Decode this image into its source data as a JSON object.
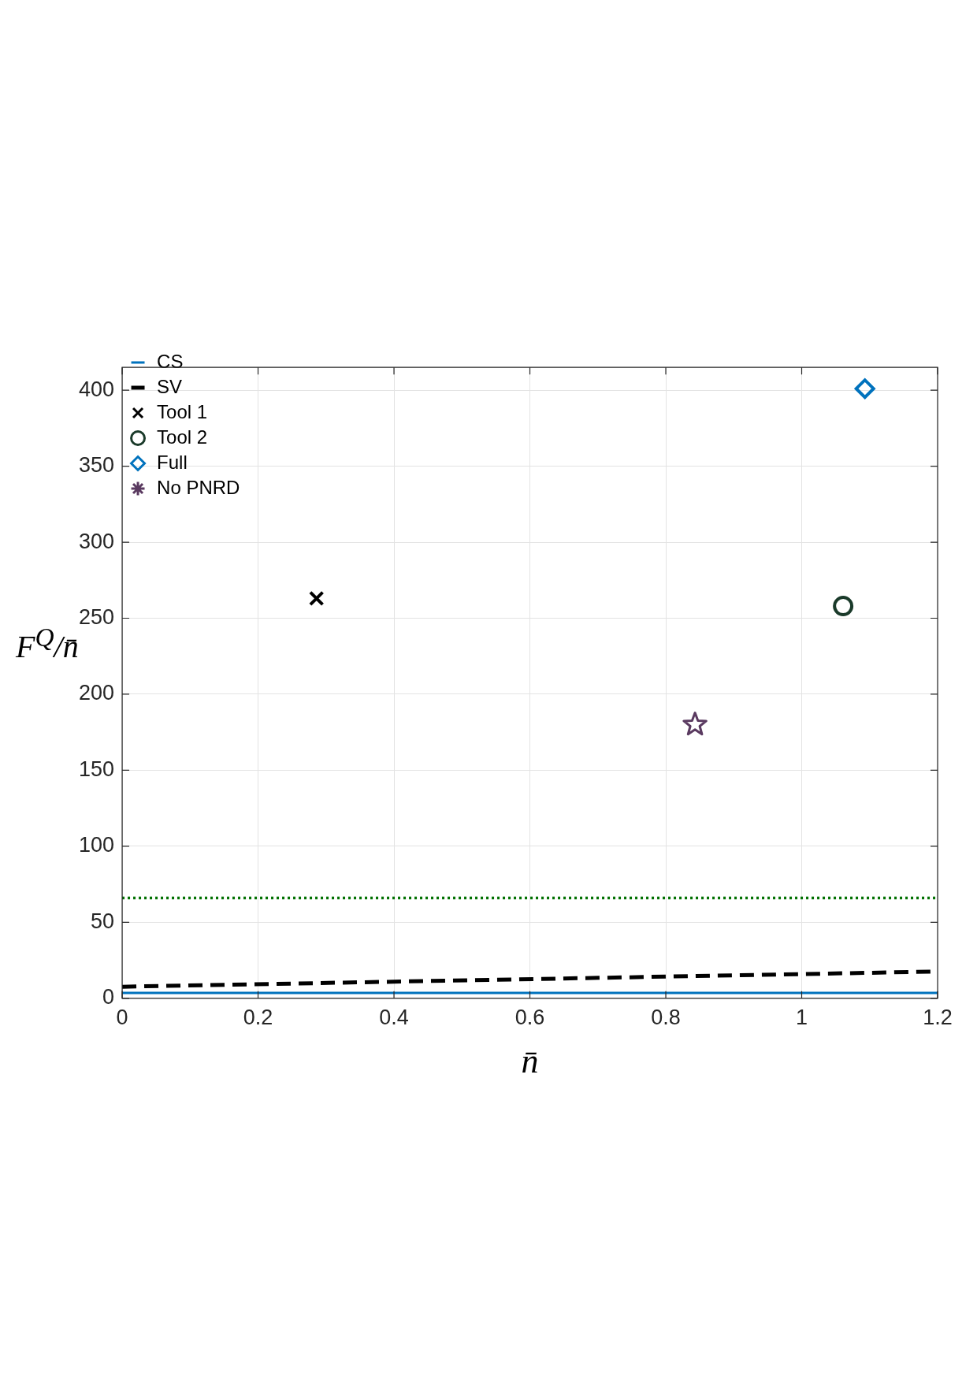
{
  "chart_data": {
    "type": "scatter",
    "xlabel": "n̄",
    "ylabel": "F$^{Q}$/n̄",
    "xlim": [
      0,
      1.2
    ],
    "xticks": [
      0,
      0.2,
      0.4,
      0.6,
      0.8,
      1,
      1.2
    ],
    "ylim": [
      0,
      415
    ],
    "yticks": [
      0,
      50,
      100,
      150,
      200,
      250,
      300,
      350,
      400
    ],
    "grid": true,
    "legend": "top left",
    "series": [
      {
        "name": "CS",
        "type": "line",
        "color": "#0072bd",
        "line_style": "solid",
        "marker": "none",
        "x": [
          0,
          1.2
        ],
        "values": [
          3.5,
          3.5
        ]
      },
      {
        "name": "SV",
        "type": "line",
        "color": "#000000",
        "line_style": "dashed",
        "marker": "none",
        "x": [
          0,
          1.2
        ],
        "values": [
          7.6,
          17.6
        ]
      },
      {
        "name": "Tool 1",
        "type": "scatter",
        "color": "#000000",
        "marker": "cross",
        "x": [
          0.286
        ],
        "values": [
          263
        ]
      },
      {
        "name": "Tool 2",
        "type": "scatter",
        "color": "#1a3a2a",
        "marker": "circle",
        "x": [
          1.061
        ],
        "values": [
          258
        ]
      },
      {
        "name": "Full",
        "type": "scatter",
        "color": "#0072bd",
        "marker": "diamond",
        "x": [
          1.093
        ],
        "values": [
          401
        ]
      },
      {
        "name": "No PNRD",
        "type": "scatter",
        "color": "#5a3a60",
        "marker": "star",
        "x": [
          0.843
        ],
        "values": [
          180
        ]
      }
    ],
    "ref_lines": [
      {
        "axis": "y",
        "value": 66,
        "color": "#007000",
        "line_style": "dotted"
      }
    ]
  }
}
